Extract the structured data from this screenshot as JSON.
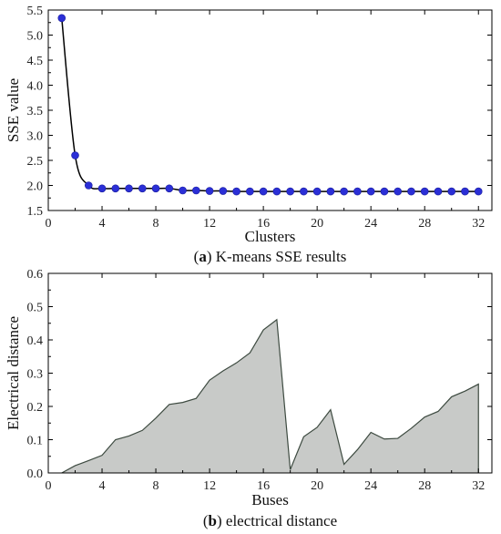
{
  "chart_data": [
    {
      "type": "line",
      "caption_letter": "a",
      "caption_text": "K-means SSE results",
      "xlabel": "Clusters",
      "ylabel": "SSE value",
      "xlim": [
        0,
        33
      ],
      "ylim": [
        1.5,
        5.5
      ],
      "xticks": [
        0,
        4,
        8,
        12,
        16,
        20,
        24,
        28,
        32
      ],
      "xtick_labels": [
        "0",
        "4",
        "8",
        "12",
        "16",
        "20",
        "24",
        "28",
        "32"
      ],
      "yticks": [
        1.5,
        2.0,
        2.5,
        3.0,
        3.5,
        4.0,
        4.5,
        5.0,
        5.5
      ],
      "ytick_labels": [
        "1.5",
        "2.0",
        "2.5",
        "3.0",
        "3.5",
        "4.0",
        "4.5",
        "5.0",
        "5.5"
      ],
      "grid": false,
      "line_color": "#000000",
      "marker_color": "#2b2fd6",
      "series": [
        {
          "x": [
            1,
            2,
            3,
            4,
            5,
            6,
            7,
            8,
            9,
            10,
            11,
            12,
            13,
            14,
            15,
            16,
            17,
            18,
            19,
            20,
            21,
            22,
            23,
            24,
            25,
            26,
            27,
            28,
            29,
            30,
            31,
            32
          ],
          "y": [
            5.34,
            2.6,
            2.0,
            1.94,
            1.94,
            1.94,
            1.94,
            1.94,
            1.94,
            1.9,
            1.9,
            1.89,
            1.89,
            1.88,
            1.88,
            1.88,
            1.88,
            1.88,
            1.88,
            1.88,
            1.88,
            1.88,
            1.88,
            1.88,
            1.88,
            1.88,
            1.88,
            1.88,
            1.88,
            1.88,
            1.88,
            1.88
          ]
        }
      ]
    },
    {
      "type": "area",
      "caption_letter": "b",
      "caption_text": "electrical distance",
      "xlabel": "Buses",
      "ylabel": "Electrical distance",
      "xlim": [
        0,
        33
      ],
      "ylim": [
        0,
        0.6
      ],
      "xticks": [
        0,
        4,
        8,
        12,
        16,
        20,
        24,
        28,
        32
      ],
      "xtick_labels": [
        "0",
        "4",
        "8",
        "12",
        "16",
        "20",
        "24",
        "28",
        "32"
      ],
      "yticks": [
        0.0,
        0.1,
        0.2,
        0.3,
        0.4,
        0.5,
        0.6
      ],
      "ytick_labels": [
        "0.0",
        "0.1",
        "0.2",
        "0.3",
        "0.4",
        "0.5",
        "0.6"
      ],
      "grid": false,
      "fill_color": "#c8cac8",
      "edge_color": "#3d4a40",
      "series": [
        {
          "x": [
            1,
            2,
            3,
            4,
            5,
            6,
            7,
            8,
            9,
            10,
            11,
            12,
            13,
            14,
            15,
            16,
            17,
            18,
            19,
            20,
            21,
            22,
            23,
            24,
            25,
            26,
            27,
            28,
            29,
            30,
            31,
            32
          ],
          "y": [
            0.0,
            0.022,
            0.037,
            0.053,
            0.1,
            0.111,
            0.128,
            0.165,
            0.206,
            0.212,
            0.224,
            0.279,
            0.307,
            0.331,
            0.361,
            0.43,
            0.461,
            0.01,
            0.109,
            0.137,
            0.19,
            0.026,
            0.07,
            0.122,
            0.102,
            0.104,
            0.134,
            0.168,
            0.185,
            0.229,
            0.246,
            0.267
          ]
        }
      ]
    }
  ]
}
